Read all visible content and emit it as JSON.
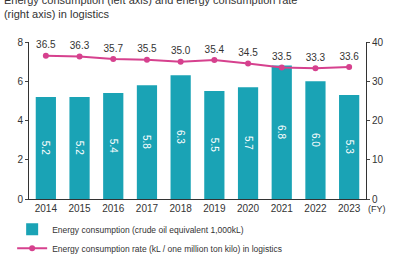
{
  "chart_data": {
    "type": "bar",
    "title": "Energy consumption (left axis) and energy consumption rate (right axis) in logistics",
    "x_label": "(FY)",
    "categories": [
      "2014",
      "2015",
      "2016",
      "2017",
      "2018",
      "2019",
      "2020",
      "2021",
      "2022",
      "2023"
    ],
    "series": [
      {
        "name": "Energy consumption (crude oil equivalent 1,000kL)",
        "type": "bar",
        "color": "#1aa3b5",
        "values": [
          5.2,
          5.2,
          5.4,
          5.8,
          6.3,
          5.5,
          5.7,
          6.8,
          6.0,
          5.3
        ],
        "value_labels": [
          "5.2",
          "5.2",
          "5.4",
          "5.8",
          "6.3",
          "5.5",
          "5.7",
          "6.8",
          "6.0",
          "5.3"
        ]
      },
      {
        "name": "Energy consumption rate (kL / one million ton kilo) in logistics",
        "type": "line",
        "axis": "y2",
        "color": "#d6418e",
        "marker": "circle",
        "values": [
          36.5,
          36.3,
          35.7,
          35.5,
          35.0,
          35.4,
          34.5,
          33.5,
          33.3,
          33.6
        ],
        "value_labels": [
          "36.5",
          "36.3",
          "35.7",
          "35.5",
          "35.0",
          "35.4",
          "34.5",
          "33.5",
          "33.3",
          "33.6"
        ]
      }
    ],
    "ylim": [
      0,
      8
    ],
    "yticks": [
      0,
      2,
      4,
      6,
      8
    ],
    "y2lim": [
      0,
      40
    ],
    "y2ticks": [
      0,
      10,
      20,
      30,
      40
    ],
    "grid": false,
    "legend": "bottom-left",
    "data_labels": true
  }
}
